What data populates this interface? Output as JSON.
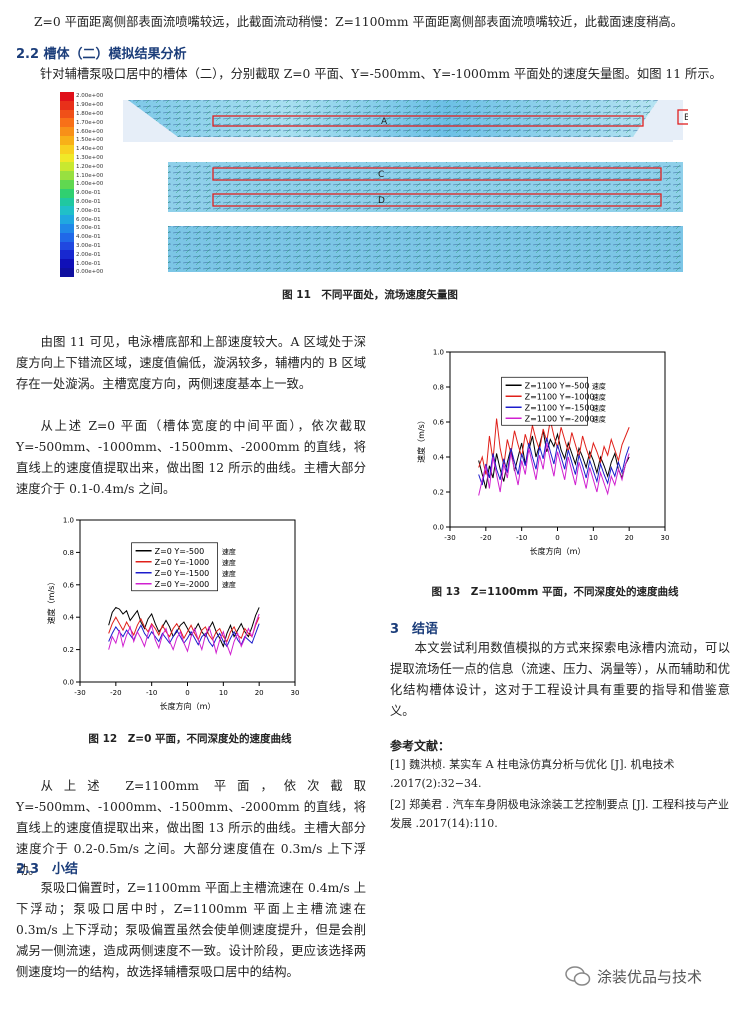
{
  "top_line": "Z=0 平面距离侧部表面流喷嘴较远，此截面流动稍慢：Z=1100mm 平面距离侧部表面流喷嘴较近，此截面速度稍高。",
  "sec22": {
    "title": "2.2 槽体（二）模拟结果分析",
    "intro": "针对辅槽泵吸口居中的槽体（二），分别截取 Z=0 平面、Y=-500mm、Y=-1000mm 平面处的速度矢量图。如图 11 所示。"
  },
  "fig11": {
    "caption": "图 11　不同平面处，流场速度矢量图",
    "labels": {
      "a": "A",
      "b": "B",
      "c": "C",
      "d": "D"
    },
    "colorbar": [
      "2.00e+00",
      "1.90e+00",
      "1.80e+00",
      "1.70e+00",
      "1.60e+00",
      "1.50e+00",
      "1.40e+00",
      "1.30e+00",
      "1.20e+00",
      "1.10e+00",
      "1.00e+00",
      "9.00e-01",
      "8.00e-01",
      "7.00e-01",
      "6.00e-01",
      "5.00e-01",
      "4.00e-01",
      "3.00e-01",
      "2.00e-01",
      "1.00e-01",
      "0.00e+00"
    ]
  },
  "left_col": {
    "para1": "由图 11 可见，电泳槽底部和上部速度较大。A 区域处于深度方向上下错流区域，速度值偏低，漩涡较多，辅槽内的 B 区域存在一处漩涡。主槽宽度方向，两侧速度基本上一致。",
    "para2": "从上述 Z=0 平面（槽体宽度的中间平面），依次截取 Y=-500mm、-1000mm、-1500mm、-2000mm 的直线，将直线上的速度值提取出来，做出图 12 所示的曲线。主槽大部分速度介于 0.1-0.4m/s 之间。",
    "para3": "从上述 Z=1100mm 平面，依次截取 Y=-500mm、-1000mm、-1500mm、-2000mm 的直线，将直线上的速度值提取出来，做出图 13 所示的曲线。主槽大部分速度介于 0.2-0.5m/s 之间。大部分速度值在 0.3m/s 上下浮动。"
  },
  "sec23": {
    "title": "2.3　小结",
    "para": "泵吸口偏置时，Z=1100mm 平面上主槽流速在 0.4m/s 上下浮动；泵吸口居中时，Z=1100mm 平面上主槽流速在 0.3m/s 上下浮动；泵吸偏置虽然会使单侧速度提升，但是会削减另一侧流速，造成两侧速度不一致。设计阶段，更应该选择两侧速度均一的结构，故选择辅槽泵吸口居中的结构。"
  },
  "sec3": {
    "title": "3　结语",
    "para": "本文尝试利用数值模拟的方式来探索电泳槽内流动，可以提取流场任一点的信息（流速、压力、涡量等），从而辅助和优化结构槽体设计，这对于工程设计具有重要的指导和借鉴意义。"
  },
  "refs": {
    "title": "参考文献：",
    "items": [
      "[1] 魏洪桢. 某实车 A 柱电泳仿真分析与优化 [J]. 机电技术 .2017(2):32−34.",
      "[2] 郑美君 . 汽车车身阴极电泳涂装工艺控制要点 [J]. 工程科技与产业发展 .2017(14):110."
    ]
  },
  "watermark": "涂装优品与技术",
  "chart_data": [
    {
      "type": "line",
      "title": "图 12　Z=0 平面，不同深度处的速度曲线",
      "xlabel": "长度方向（m）",
      "ylabel": "速度（m/s）",
      "xlim": [
        -30,
        30
      ],
      "ylim": [
        0,
        1.0
      ],
      "xticks": [
        "-30",
        "-20",
        "-10",
        "0",
        "10",
        "20",
        "30"
      ],
      "yticks": [
        "0.0",
        "0.2",
        "0.4",
        "0.6",
        "0.8",
        "1.0"
      ],
      "legend_placement": "top-left",
      "legend_suffix": "速度",
      "x": [
        -22,
        -21,
        -20,
        -19,
        -18,
        -17,
        -16,
        -15,
        -14,
        -13,
        -12,
        -11,
        -10,
        -9,
        -8,
        -7,
        -6,
        -5,
        -4,
        -3,
        -2,
        -1,
        0,
        1,
        2,
        3,
        4,
        5,
        6,
        7,
        8,
        9,
        10,
        11,
        12,
        13,
        14,
        15,
        16,
        17,
        18,
        19,
        20
      ],
      "series": [
        {
          "name": "Z=0 Y=-500",
          "color": "#000000",
          "values": [
            0.35,
            0.43,
            0.46,
            0.45,
            0.42,
            0.44,
            0.38,
            0.41,
            0.44,
            0.37,
            0.33,
            0.39,
            0.42,
            0.36,
            0.31,
            0.34,
            0.38,
            0.34,
            0.28,
            0.31,
            0.35,
            0.37,
            0.33,
            0.29,
            0.32,
            0.36,
            0.31,
            0.28,
            0.33,
            0.37,
            0.31,
            0.27,
            0.22,
            0.3,
            0.35,
            0.28,
            0.32,
            0.36,
            0.31,
            0.28,
            0.34,
            0.41,
            0.46
          ]
        },
        {
          "name": "Z=0 Y=-1000",
          "color": "#e0201a",
          "values": [
            0.3,
            0.36,
            0.4,
            0.36,
            0.32,
            0.37,
            0.33,
            0.29,
            0.35,
            0.39,
            0.34,
            0.31,
            0.36,
            0.33,
            0.29,
            0.35,
            0.31,
            0.28,
            0.33,
            0.36,
            0.32,
            0.27,
            0.31,
            0.35,
            0.3,
            0.26,
            0.32,
            0.34,
            0.29,
            0.26,
            0.31,
            0.33,
            0.28,
            0.25,
            0.31,
            0.34,
            0.29,
            0.27,
            0.33,
            0.3,
            0.28,
            0.35,
            0.4
          ]
        },
        {
          "name": "Z=0 Y=-1500",
          "color": "#1c1ccc",
          "values": [
            0.25,
            0.3,
            0.34,
            0.31,
            0.28,
            0.32,
            0.29,
            0.26,
            0.31,
            0.35,
            0.3,
            0.27,
            0.31,
            0.28,
            0.25,
            0.3,
            0.27,
            0.24,
            0.28,
            0.32,
            0.28,
            0.24,
            0.27,
            0.31,
            0.27,
            0.23,
            0.28,
            0.3,
            0.25,
            0.22,
            0.27,
            0.3,
            0.25,
            0.22,
            0.27,
            0.31,
            0.26,
            0.23,
            0.28,
            0.26,
            0.24,
            0.3,
            0.36
          ]
        },
        {
          "name": "Z=0 Y=-2000",
          "color": "#d020d0",
          "values": [
            0.2,
            0.28,
            0.24,
            0.32,
            0.22,
            0.29,
            0.34,
            0.25,
            0.31,
            0.27,
            0.22,
            0.3,
            0.35,
            0.26,
            0.21,
            0.29,
            0.33,
            0.25,
            0.2,
            0.27,
            0.31,
            0.24,
            0.19,
            0.28,
            0.33,
            0.26,
            0.2,
            0.29,
            0.34,
            0.27,
            0.18,
            0.26,
            0.31,
            0.23,
            0.17,
            0.25,
            0.3,
            0.22,
            0.27,
            0.33,
            0.28,
            0.36,
            0.42
          ]
        }
      ]
    },
    {
      "type": "line",
      "title": "图 13　Z=1100mm 平面，不同深度处的速度曲线",
      "xlabel": "长度方向（m）",
      "ylabel": "速度（m/s）",
      "xlim": [
        -30,
        30
      ],
      "ylim": [
        0,
        1.0
      ],
      "xticks": [
        "-30",
        "-20",
        "-10",
        "0",
        "10",
        "20",
        "30"
      ],
      "yticks": [
        "0.0",
        "0.2",
        "0.4",
        "0.6",
        "0.8",
        "1.0"
      ],
      "legend_placement": "top-left",
      "legend_suffix": "速度",
      "x": [
        -22,
        -21,
        -20,
        -19,
        -18,
        -17,
        -16,
        -15,
        -14,
        -13,
        -12,
        -11,
        -10,
        -9,
        -8,
        -7,
        -6,
        -5,
        -4,
        -3,
        -2,
        -1,
        0,
        1,
        2,
        3,
        4,
        5,
        6,
        7,
        8,
        9,
        10,
        11,
        12,
        13,
        14,
        15,
        16,
        17,
        18,
        19,
        20
      ],
      "series": [
        {
          "name": "Z=1100 Y=-500",
          "color": "#000000",
          "values": [
            0.38,
            0.3,
            0.22,
            0.35,
            0.28,
            0.42,
            0.33,
            0.26,
            0.37,
            0.45,
            0.32,
            0.4,
            0.48,
            0.36,
            0.44,
            0.52,
            0.4,
            0.47,
            0.55,
            0.43,
            0.5,
            0.46,
            0.53,
            0.44,
            0.39,
            0.48,
            0.42,
            0.36,
            0.45,
            0.4,
            0.34,
            0.43,
            0.38,
            0.31,
            0.4,
            0.35,
            0.29,
            0.37,
            0.42,
            0.33,
            0.28,
            0.36,
            0.4
          ]
        },
        {
          "name": "Z=1100 Y=-1000",
          "color": "#e0201a",
          "values": [
            0.34,
            0.4,
            0.3,
            0.52,
            0.38,
            0.62,
            0.45,
            0.35,
            0.5,
            0.42,
            0.55,
            0.47,
            0.4,
            0.53,
            0.46,
            0.58,
            0.5,
            0.44,
            0.56,
            0.49,
            0.61,
            0.52,
            0.45,
            0.57,
            0.5,
            0.43,
            0.54,
            0.47,
            0.4,
            0.52,
            0.45,
            0.39,
            0.48,
            0.43,
            0.37,
            0.46,
            0.41,
            0.5,
            0.44,
            0.38,
            0.47,
            0.52,
            0.57
          ]
        },
        {
          "name": "Z=1100 Y=-1500",
          "color": "#1c1ccc",
          "values": [
            0.3,
            0.24,
            0.36,
            0.28,
            0.42,
            0.33,
            0.27,
            0.39,
            0.31,
            0.45,
            0.37,
            0.3,
            0.42,
            0.35,
            0.48,
            0.4,
            0.33,
            0.46,
            0.39,
            0.51,
            0.43,
            0.36,
            0.47,
            0.4,
            0.33,
            0.44,
            0.37,
            0.3,
            0.41,
            0.35,
            0.28,
            0.38,
            0.32,
            0.26,
            0.36,
            0.3,
            0.25,
            0.34,
            0.29,
            0.37,
            0.31,
            0.4,
            0.46
          ]
        },
        {
          "name": "Z=1100 Y=-2000",
          "color": "#d020d0",
          "values": [
            0.18,
            0.27,
            0.35,
            0.22,
            0.4,
            0.3,
            0.2,
            0.36,
            0.28,
            0.42,
            0.33,
            0.24,
            0.38,
            0.3,
            0.45,
            0.36,
            0.27,
            0.41,
            0.33,
            0.48,
            0.38,
            0.29,
            0.43,
            0.35,
            0.27,
            0.4,
            0.32,
            0.24,
            0.37,
            0.3,
            0.22,
            0.34,
            0.27,
            0.2,
            0.31,
            0.25,
            0.19,
            0.29,
            0.24,
            0.33,
            0.27,
            0.36,
            0.42
          ]
        }
      ]
    }
  ]
}
